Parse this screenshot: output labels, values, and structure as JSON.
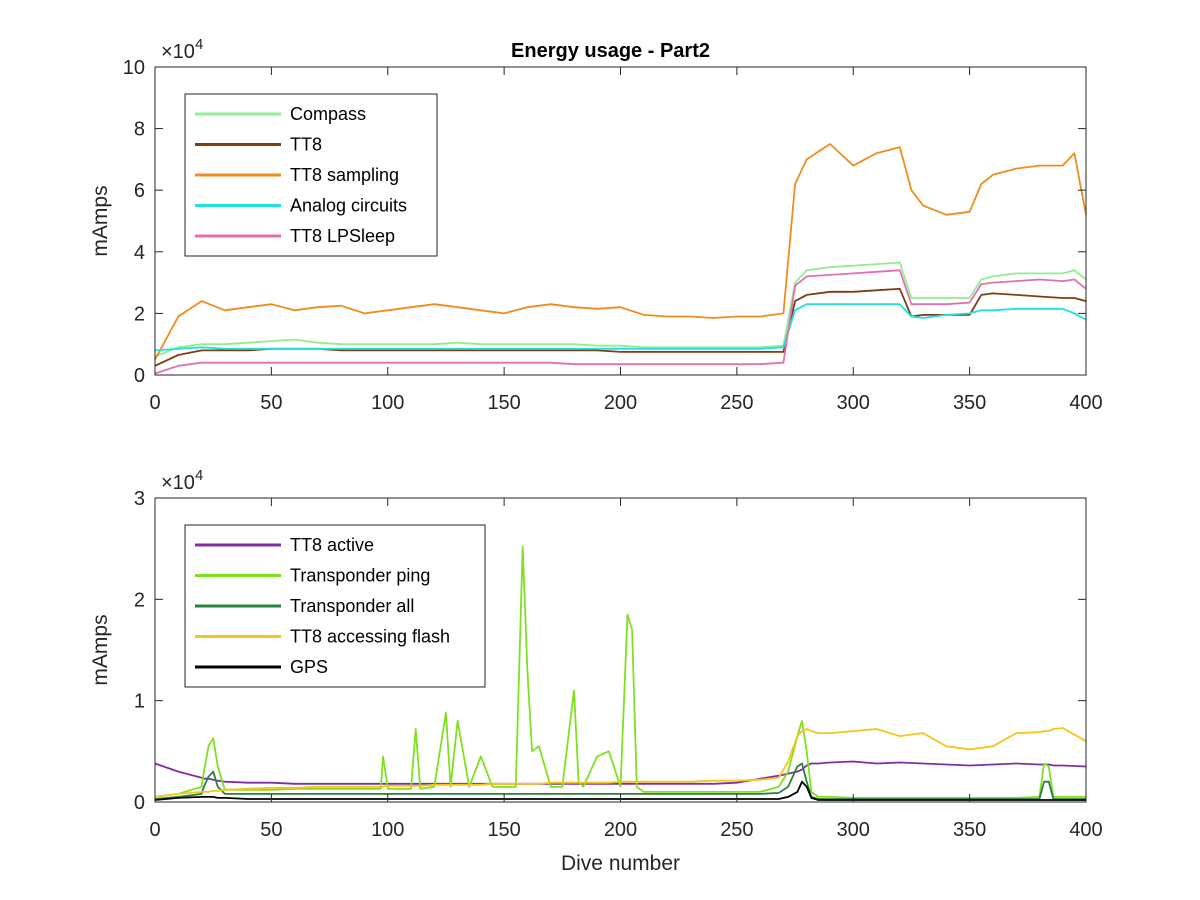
{
  "chart_data": [
    {
      "type": "line",
      "title": "Energy usage - Part2",
      "xlabel": "",
      "ylabel": "mAmps",
      "xlim": [
        0,
        400
      ],
      "ylim": [
        0,
        100000
      ],
      "x_ticks": [
        0,
        50,
        100,
        150,
        200,
        250,
        300,
        350,
        400
      ],
      "y_ticks": [
        0,
        20000,
        40000,
        60000,
        80000,
        100000
      ],
      "y_tick_labels": [
        "0",
        "2",
        "4",
        "6",
        "8",
        "10"
      ],
      "y_exponent_label": "×10",
      "y_exponent": "4",
      "grid": false,
      "legend_position": "top-left",
      "x": [
        0,
        10,
        20,
        30,
        40,
        50,
        60,
        70,
        80,
        90,
        100,
        110,
        120,
        130,
        140,
        150,
        160,
        170,
        180,
        190,
        200,
        210,
        220,
        230,
        240,
        250,
        260,
        270,
        275,
        280,
        290,
        300,
        310,
        320,
        325,
        330,
        340,
        350,
        355,
        360,
        370,
        380,
        390,
        395,
        400
      ],
      "series": [
        {
          "name": "Compass",
          "color": "#90ee90",
          "values": [
            6000,
            9000,
            10000,
            10000,
            10500,
            11000,
            11500,
            10500,
            10000,
            10000,
            10000,
            10000,
            10000,
            10500,
            10000,
            10000,
            10000,
            10000,
            10000,
            9500,
            9500,
            9000,
            9000,
            9000,
            9000,
            9000,
            9000,
            9500,
            30000,
            34000,
            35000,
            35500,
            36000,
            36500,
            25000,
            25000,
            25000,
            25000,
            31000,
            32000,
            33000,
            33000,
            33000,
            34000,
            31000
          ]
        },
        {
          "name": "TT8",
          "color": "#7b3f14",
          "values": [
            3000,
            6500,
            8000,
            8000,
            8000,
            8500,
            8500,
            8500,
            8000,
            8000,
            8000,
            8000,
            8000,
            8000,
            8000,
            8000,
            8000,
            8000,
            8000,
            8000,
            7500,
            7500,
            7500,
            7500,
            7500,
            7500,
            7500,
            7500,
            24000,
            26000,
            27000,
            27000,
            27500,
            28000,
            19000,
            19500,
            19500,
            19500,
            26000,
            26500,
            26000,
            25500,
            25000,
            25000,
            24000
          ]
        },
        {
          "name": "TT8 sampling",
          "color": "#f08c1c",
          "values": [
            5000,
            19000,
            24000,
            21000,
            22000,
            23000,
            21000,
            22000,
            22500,
            20000,
            21000,
            22000,
            23000,
            22000,
            21000,
            20000,
            22000,
            23000,
            22000,
            21500,
            22000,
            19500,
            19000,
            19000,
            18500,
            19000,
            19000,
            20000,
            62000,
            70000,
            75000,
            68000,
            72000,
            74000,
            60000,
            55000,
            52000,
            53000,
            62000,
            65000,
            67000,
            68000,
            68000,
            72000,
            52000
          ]
        },
        {
          "name": "Analog circuits",
          "color": "#22e0e0",
          "values": [
            8000,
            8500,
            9000,
            8500,
            8500,
            8500,
            8500,
            8500,
            8500,
            8500,
            8500,
            8500,
            8500,
            8500,
            8500,
            8500,
            8500,
            8500,
            8500,
            8500,
            8500,
            8500,
            8500,
            8500,
            8500,
            8500,
            8500,
            9000,
            21000,
            23000,
            23000,
            23000,
            23000,
            23000,
            19000,
            18500,
            19500,
            20000,
            21000,
            21000,
            21500,
            21500,
            21500,
            20000,
            18000
          ]
        },
        {
          "name": "TT8 LPSleep",
          "color": "#e070b0",
          "values": [
            500,
            3000,
            4000,
            4000,
            4000,
            4000,
            4000,
            4000,
            4000,
            4000,
            4000,
            4000,
            4000,
            4000,
            4000,
            4000,
            4000,
            4000,
            3500,
            3500,
            3500,
            3500,
            3500,
            3500,
            3500,
            3500,
            3500,
            4000,
            29000,
            32000,
            32500,
            33000,
            33500,
            34000,
            23000,
            23000,
            23000,
            23500,
            29500,
            30000,
            30500,
            31000,
            30500,
            31000,
            28000
          ]
        }
      ]
    },
    {
      "type": "line",
      "title": "",
      "xlabel": "Dive number",
      "ylabel": "mAmps",
      "xlim": [
        0,
        400
      ],
      "ylim": [
        0,
        30000
      ],
      "x_ticks": [
        0,
        50,
        100,
        150,
        200,
        250,
        300,
        350,
        400
      ],
      "y_ticks": [
        0,
        10000,
        20000,
        30000
      ],
      "y_tick_labels": [
        "0",
        "1",
        "2",
        "3"
      ],
      "y_exponent_label": "×10",
      "y_exponent": "4",
      "grid": false,
      "legend_position": "top-left",
      "x": [
        0,
        10,
        20,
        21,
        23,
        25,
        27,
        30,
        40,
        50,
        60,
        70,
        80,
        90,
        97,
        98,
        100,
        102,
        110,
        112,
        114,
        120,
        125,
        127,
        130,
        135,
        140,
        145,
        150,
        155,
        158,
        160,
        162,
        165,
        170,
        175,
        180,
        182,
        184,
        190,
        195,
        200,
        203,
        205,
        207,
        210,
        220,
        230,
        240,
        250,
        260,
        268,
        272,
        276,
        278,
        280,
        282,
        285,
        290,
        300,
        310,
        320,
        330,
        340,
        350,
        360,
        370,
        380,
        382,
        384,
        386,
        390,
        400
      ],
      "series": [
        {
          "name": "TT8 active",
          "color": "#7e2fa8",
          "values": [
            3800,
            3000,
            2400,
            2300,
            2300,
            2200,
            2100,
            2000,
            1900,
            1900,
            1800,
            1800,
            1800,
            1800,
            1800,
            1800,
            1800,
            1800,
            1800,
            1800,
            1800,
            1800,
            1800,
            1800,
            1800,
            1800,
            1800,
            1800,
            1800,
            1800,
            1800,
            1800,
            1800,
            1800,
            1800,
            1800,
            1800,
            1800,
            1800,
            1800,
            1800,
            1800,
            1800,
            1800,
            1800,
            1800,
            1800,
            1800,
            1800,
            1900,
            2300,
            2600,
            2800,
            3000,
            3200,
            3600,
            3800,
            3800,
            3900,
            4000,
            3800,
            3900,
            3800,
            3700,
            3600,
            3700,
            3800,
            3700,
            3700,
            3700,
            3600,
            3600,
            3500
          ]
        },
        {
          "name": "Transponder ping",
          "color": "#80e020",
          "values": [
            500,
            800,
            1500,
            3000,
            5500,
            6300,
            3500,
            1200,
            1200,
            1200,
            1300,
            1300,
            1300,
            1300,
            1300,
            4500,
            1300,
            1300,
            1300,
            7200,
            1300,
            1500,
            8800,
            1500,
            8000,
            1500,
            4500,
            1500,
            1500,
            1500,
            25200,
            13000,
            5000,
            5500,
            1500,
            1500,
            11000,
            2000,
            1500,
            4500,
            5000,
            1500,
            18500,
            17000,
            1500,
            1000,
            1000,
            1000,
            1000,
            1000,
            1000,
            1500,
            3000,
            6500,
            8000,
            5000,
            1000,
            500,
            500,
            400,
            400,
            400,
            400,
            400,
            400,
            400,
            400,
            500,
            3800,
            3500,
            500,
            500,
            500
          ]
        },
        {
          "name": "Transponder all",
          "color": "#2a8040",
          "values": [
            300,
            500,
            800,
            1500,
            2500,
            3000,
            1500,
            800,
            800,
            800,
            800,
            800,
            800,
            800,
            800,
            800,
            800,
            800,
            800,
            800,
            800,
            800,
            800,
            800,
            800,
            800,
            800,
            800,
            800,
            800,
            800,
            800,
            800,
            800,
            800,
            800,
            800,
            800,
            800,
            800,
            800,
            800,
            800,
            800,
            800,
            800,
            800,
            800,
            800,
            800,
            800,
            900,
            1500,
            3500,
            3800,
            2000,
            500,
            300,
            300,
            300,
            300,
            300,
            300,
            300,
            300,
            300,
            300,
            300,
            2000,
            2000,
            300,
            300,
            300
          ]
        },
        {
          "name": "TT8 accessing flash",
          "color": "#f5c518",
          "values": [
            500,
            800,
            1000,
            1000,
            1000,
            1100,
            1100,
            1200,
            1300,
            1400,
            1400,
            1500,
            1500,
            1500,
            1500,
            1500,
            1600,
            1600,
            1600,
            1600,
            1600,
            1700,
            1700,
            1700,
            1700,
            1700,
            1700,
            1800,
            1800,
            1800,
            1800,
            1800,
            1800,
            1800,
            1900,
            1900,
            1900,
            1900,
            1900,
            1900,
            1900,
            2000,
            2000,
            2000,
            2000,
            2000,
            2000,
            2000,
            2100,
            2100,
            2200,
            2400,
            4000,
            6500,
            7000,
            7200,
            7000,
            6800,
            6800,
            7000,
            7200,
            6500,
            6800,
            5500,
            5200,
            5500,
            6800,
            6900,
            7000,
            7000,
            7200,
            7300,
            6000
          ]
        },
        {
          "name": "GPS",
          "color": "#000000",
          "values": [
            200,
            400,
            500,
            500,
            500,
            500,
            400,
            400,
            300,
            300,
            300,
            300,
            300,
            300,
            300,
            300,
            300,
            300,
            300,
            300,
            300,
            300,
            300,
            300,
            300,
            300,
            300,
            300,
            300,
            300,
            300,
            300,
            300,
            300,
            300,
            300,
            300,
            300,
            300,
            300,
            300,
            300,
            300,
            300,
            300,
            300,
            300,
            300,
            300,
            300,
            300,
            300,
            500,
            1000,
            2000,
            1500,
            400,
            200,
            200,
            200,
            200,
            200,
            200,
            200,
            200,
            200,
            200,
            200,
            200,
            200,
            200,
            200,
            200
          ]
        }
      ]
    }
  ]
}
